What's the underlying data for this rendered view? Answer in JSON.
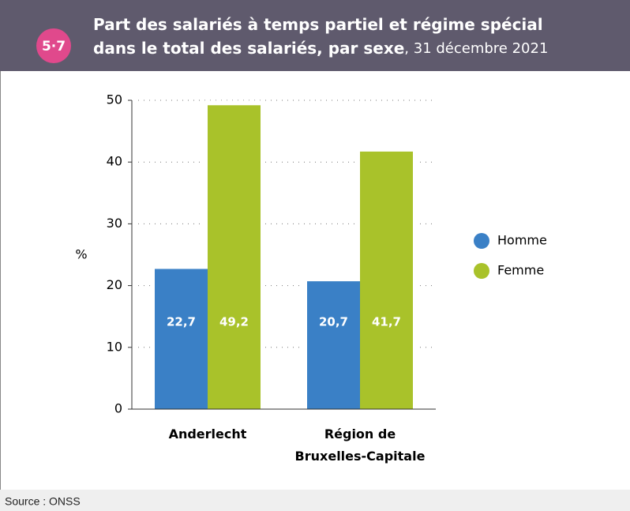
{
  "badge": "5·7",
  "chart_data": {
    "type": "bar",
    "title": "Part des salariés à temps partiel et régime spécial dans le total des salariés, par sexe",
    "subtitle": ", 31 décembre 2021",
    "y_label": "%",
    "categories": [
      "Anderlecht",
      "Région de Bruxelles-Capitale"
    ],
    "series": [
      {
        "name": "Homme",
        "color": "#3a80c6",
        "values": [
          22.7,
          20.7
        ],
        "value_labels": [
          "22,7",
          "20,7"
        ]
      },
      {
        "name": "Femme",
        "color": "#a9c22a",
        "values": [
          49.2,
          41.7
        ],
        "value_labels": [
          "49,2",
          "41,7"
        ]
      }
    ],
    "ylim": [
      0,
      50
    ],
    "yticks": [
      0,
      10,
      20,
      30,
      40,
      50
    ],
    "grid": true,
    "legend": "right"
  },
  "source": "Source : ONSS"
}
